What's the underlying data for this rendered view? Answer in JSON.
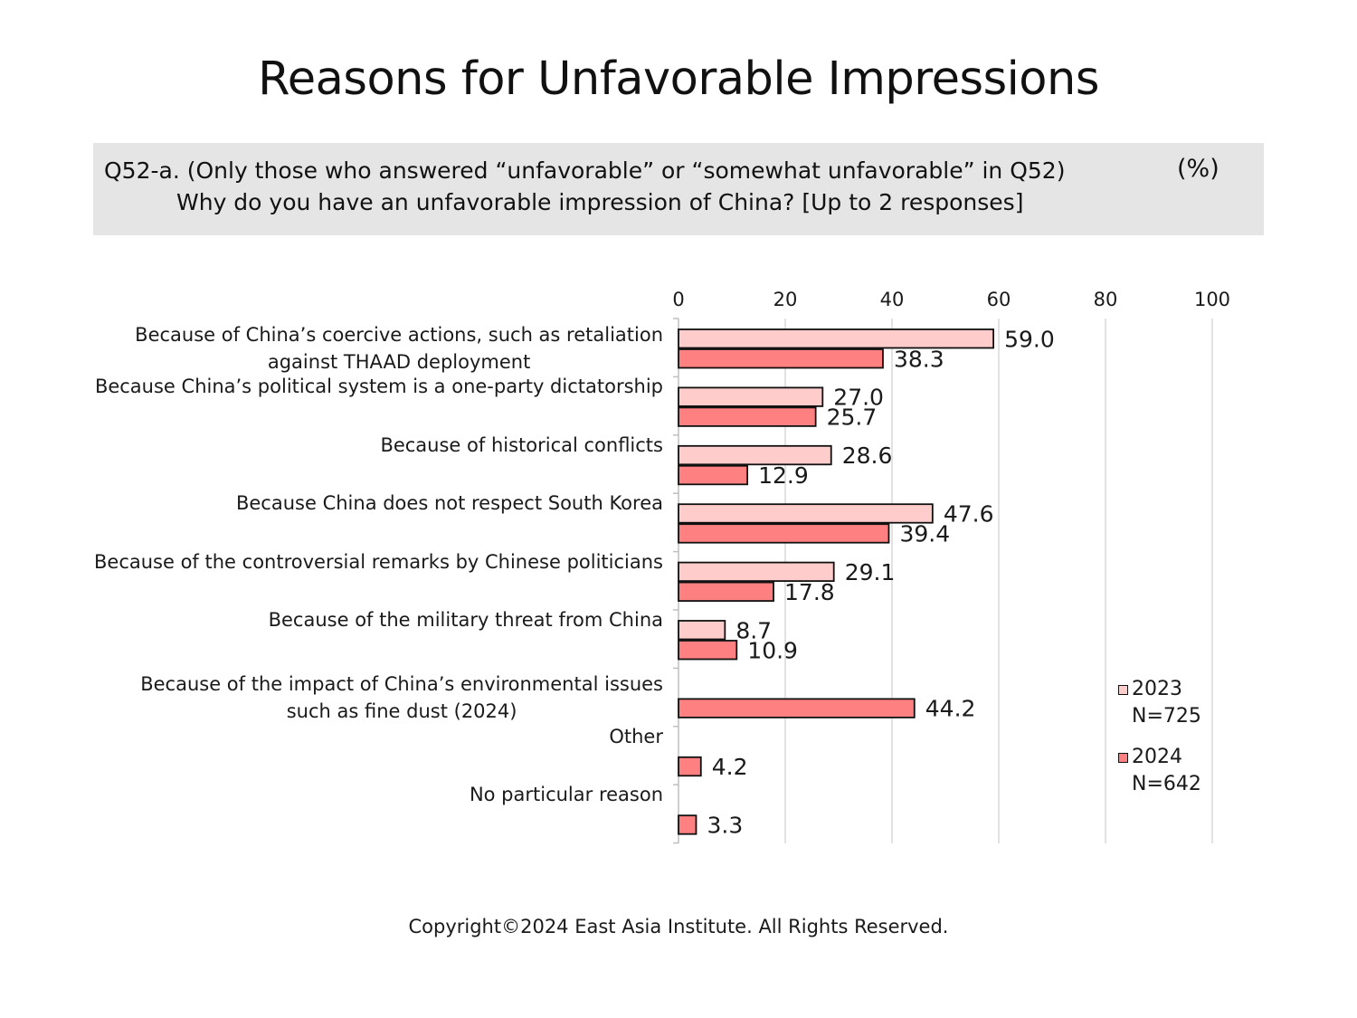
{
  "title": "Reasons for Unfavorable Impressions",
  "question": {
    "line1": "Q52-a. (Only those who answered “unfavorable” or “somewhat unfavorable” in Q52)",
    "line2": "Why do you have an unfavorable impression of China? [Up to 2 responses]",
    "unit": "(%)"
  },
  "copyright": "Copyright©2024 East Asia Institute. All Rights Reserved.",
  "chart_data": {
    "type": "bar",
    "orientation": "horizontal",
    "xlim": [
      0,
      100
    ],
    "ticks": [
      0,
      20,
      40,
      60,
      80,
      100
    ],
    "grid": true,
    "legend_position": "bottom-right",
    "categories": [
      "Because of China’s coercive actions, such as retaliation against THAAD deployment",
      "Because China’s political system is a one-party dictatorship",
      "Because of historical conflicts",
      "Because China does not respect South Korea",
      "Because of the controversial remarks by Chinese politicians",
      "Because of the military threat from China",
      "Because of the impact of China’s environmental issues such as fine dust (2024)",
      "Other",
      "No particular reason"
    ],
    "category_lines": [
      [
        "Because of China’s coercive actions, such as retaliation",
        "against THAAD deployment"
      ],
      [
        "Because China’s political system is a one-party dictatorship"
      ],
      [
        "Because of historical conflicts"
      ],
      [
        "Because China does not respect South Korea"
      ],
      [
        "Because of the controversial remarks by Chinese politicians"
      ],
      [
        "Because of the military threat from China"
      ],
      [
        "Because of the impact of China’s environmental issues",
        "such as fine dust (2024)"
      ],
      [
        "Other"
      ],
      [
        "No particular reason"
      ]
    ],
    "series": [
      {
        "name": "2023",
        "sublabel": "N=725",
        "color": "#ffcccc",
        "values": [
          59.0,
          27.0,
          28.6,
          47.6,
          29.1,
          8.7,
          null,
          null,
          null
        ],
        "labels": [
          "59.0",
          "27.0",
          "28.6",
          "47.6",
          "29.1",
          "8.7",
          null,
          null,
          null
        ]
      },
      {
        "name": "2024",
        "sublabel": "N=642",
        "color": "#ff8080",
        "values": [
          38.3,
          25.7,
          12.9,
          39.4,
          17.8,
          10.9,
          44.2,
          4.2,
          3.3
        ],
        "labels": [
          "38.3",
          "25.7",
          "12.9",
          "39.4",
          "17.8",
          "10.9",
          "44.2",
          "4.2",
          "3.3"
        ]
      }
    ]
  }
}
